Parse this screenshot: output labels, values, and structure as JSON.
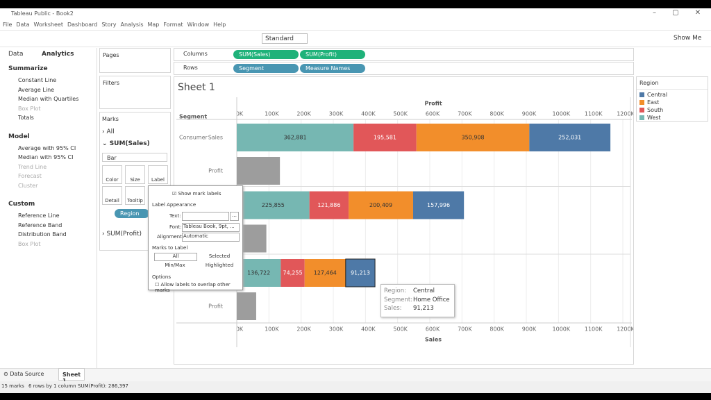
{
  "window_title": "Tableau Public - Book2",
  "menu": [
    "File",
    "Data",
    "Worksheet",
    "Dashboard",
    "Story",
    "Analysis",
    "Map",
    "Format",
    "Window",
    "Help"
  ],
  "toolbar": {
    "fit": "Standard",
    "show_me": "Show Me"
  },
  "side_pane": {
    "tabs": [
      "Data",
      "Analytics"
    ],
    "sections": [
      {
        "title": "Summarize",
        "items": [
          "Constant Line",
          "Average Line",
          "Median with Quartiles",
          "Box Plot",
          "Totals"
        ]
      },
      {
        "title": "Model",
        "items": [
          "Average with 95% CI",
          "Median with 95% CI",
          "Trend Line",
          "Forecast",
          "Cluster"
        ]
      },
      {
        "title": "Custom",
        "items": [
          "Reference Line",
          "Reference Band",
          "Distribution Band",
          "Box Plot"
        ]
      }
    ]
  },
  "cards": {
    "pages": "Pages",
    "filters": "Filters",
    "marks": "Marks",
    "all": "All",
    "sum_sales": "SUM(Sales)",
    "mark_type": "Bar",
    "buttons": [
      "Color",
      "Size",
      "Label",
      "Detail",
      "Tooltip"
    ],
    "region_pill": "Region",
    "sum_profit": "SUM(Profit)"
  },
  "shelves": {
    "columns": "Columns",
    "rows": "Rows",
    "column_pills": [
      "SUM(Sales)",
      "SUM(Profit)"
    ],
    "row_pills": [
      "Segment",
      "Measure Names"
    ]
  },
  "sheet_title": "Sheet 1",
  "chart": {
    "type": "bar",
    "row_header": "Segment",
    "top_axis_title": "Profit",
    "bottom_axis_title": "Sales",
    "categories": [
      "Consumer",
      null,
      null
    ],
    "sales_labels": [
      "Sales",
      null,
      null
    ],
    "profit_labels": [
      "Profit",
      null,
      "Profit"
    ],
    "legend_title": "Region",
    "xlim": [
      0,
      1200000
    ],
    "xticks": [
      {
        "value": 0,
        "label": "0K"
      },
      {
        "value": 100000,
        "label": "100K"
      },
      {
        "value": 200000,
        "label": "200K"
      },
      {
        "value": 300000,
        "label": "300K"
      },
      {
        "value": 400000,
        "label": "400K"
      },
      {
        "value": 500000,
        "label": "500K"
      },
      {
        "value": 600000,
        "label": "600K"
      },
      {
        "value": 700000,
        "label": "700K"
      },
      {
        "value": 800000,
        "label": "800K"
      },
      {
        "value": 900000,
        "label": "900K"
      },
      {
        "value": 1000000,
        "label": "1000K"
      },
      {
        "value": 1100000,
        "label": "1100K"
      },
      {
        "value": 1200000,
        "label": "1200K"
      }
    ],
    "series": [
      {
        "name": "West",
        "color": "#76b7b2",
        "label_color": "#333333",
        "values": [
          362881,
          225855,
          136722
        ],
        "value_labels": [
          "362,881",
          "225,855",
          "136,722"
        ]
      },
      {
        "name": "South",
        "color": "#e15759",
        "label_color": "#ffffff",
        "values": [
          195581,
          121886,
          74255
        ],
        "value_labels": [
          "195,581",
          "121,886",
          "74,255"
        ]
      },
      {
        "name": "East",
        "color": "#f28e2b",
        "label_color": "#333333",
        "values": [
          350908,
          200409,
          127464
        ],
        "value_labels": [
          "350,908",
          "200,409",
          "127,464"
        ]
      },
      {
        "name": "Central",
        "color": "#4e79a7",
        "label_color": "#ffffff",
        "values": [
          252031,
          157996,
          91213
        ],
        "value_labels": [
          "252,031",
          "157,996",
          "91,213"
        ]
      }
    ],
    "profit_values": [
      134119,
      91979,
      60299
    ],
    "profit_color": "#9d9d9d",
    "grid": true
  },
  "label_dialog": {
    "show_mark_labels": "Show mark labels",
    "appearance": "Label Appearance",
    "text": "Text:",
    "font": "Font:",
    "font_value": "Tableau Book, 9pt, ...",
    "alignment": "Alignment:",
    "alignment_value": "Automatic",
    "marks_to_label": "Marks to Label",
    "choices": [
      "All",
      "Selected",
      "Min/Max",
      "Highlighted"
    ],
    "options": "Options",
    "overlap": "Allow labels to overlap other marks"
  },
  "tooltip": [
    {
      "label": "Region:",
      "value": "Central"
    },
    {
      "label": "Segment:",
      "value": "Home Office"
    },
    {
      "label": "Sales:",
      "value": "91,213"
    }
  ],
  "tabs": {
    "data_source": "Data Source",
    "sheet": "Sheet 1"
  },
  "status": [
    "15 marks",
    "6 rows by 1 column",
    "SUM(Profit): 286,397"
  ]
}
